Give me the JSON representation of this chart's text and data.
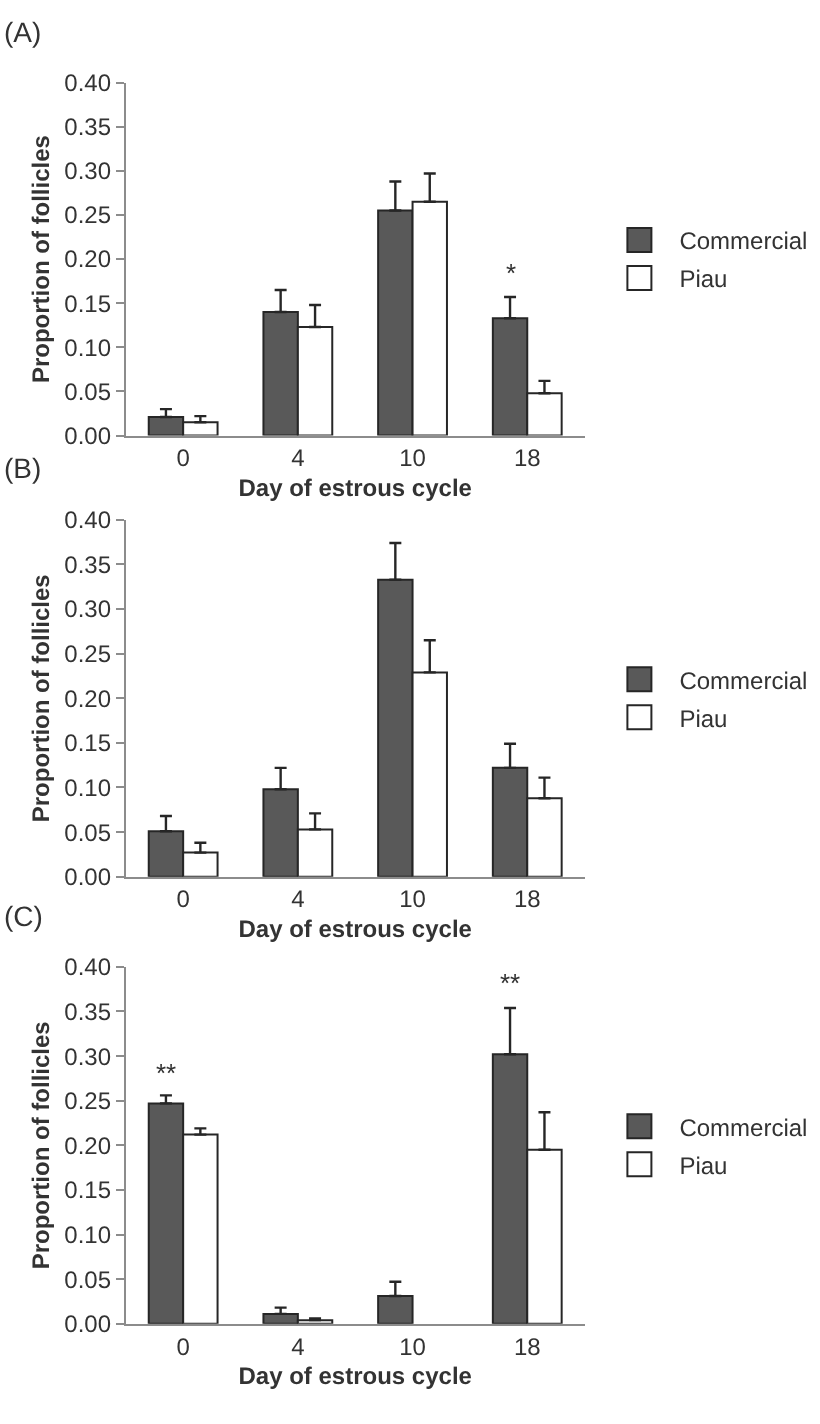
{
  "chart_data": [
    {
      "type": "bar",
      "title": "(A)",
      "xlabel": "Day of estrous cycle",
      "ylabel": "Proportion of follicles",
      "categories": [
        "0",
        "4",
        "10",
        "18"
      ],
      "ylim": [
        0,
        0.4
      ],
      "yticks": [
        {
          "value": 0,
          "label": "0.00"
        },
        {
          "value": 0.05,
          "label": "0.05"
        },
        {
          "value": 0.1,
          "label": "0.10"
        },
        {
          "value": 0.15,
          "label": "0.15"
        },
        {
          "value": 0.2,
          "label": "0.20"
        },
        {
          "value": 0.25,
          "label": "0.25"
        },
        {
          "value": 0.3,
          "label": "0.30"
        },
        {
          "value": 0.35,
          "label": "0.35"
        },
        {
          "value": 0.4,
          "label": "0.40"
        }
      ],
      "legend": "right",
      "series": [
        {
          "name": "Commercial",
          "color": "#595959",
          "values": [
            0.021,
            0.14,
            0.255,
            0.133
          ],
          "errors": [
            [
              0.021,
              0.03
            ],
            [
              0.14,
              0.165
            ],
            [
              0.255,
              0.288
            ],
            [
              0.133,
              0.157
            ]
          ]
        },
        {
          "name": "Piau",
          "color": "#ffffff",
          "values": [
            0.015,
            0.123,
            0.265,
            0.048
          ],
          "errors": [
            [
              0.015,
              0.022
            ],
            [
              0.123,
              0.148
            ],
            [
              0.265,
              0.297
            ],
            [
              0.048,
              0.062
            ]
          ]
        }
      ],
      "annotations": [
        {
          "text": "*",
          "x": "18",
          "y": 0.133
        }
      ]
    },
    {
      "type": "bar",
      "title": "(B)",
      "xlabel": "Day of estrous cycle",
      "ylabel": "Proportion of follicles",
      "categories": [
        "0",
        "4",
        "10",
        "18"
      ],
      "ylim": [
        0,
        0.4
      ],
      "yticks": [
        {
          "value": 0,
          "label": "0.00"
        },
        {
          "value": 0.05,
          "label": "0.05"
        },
        {
          "value": 0.1,
          "label": "0.10"
        },
        {
          "value": 0.15,
          "label": "0.15"
        },
        {
          "value": 0.2,
          "label": "0.20"
        },
        {
          "value": 0.25,
          "label": "0.25"
        },
        {
          "value": 0.3,
          "label": "0.30"
        },
        {
          "value": 0.35,
          "label": "0.35"
        },
        {
          "value": 0.4,
          "label": "0.40"
        }
      ],
      "legend": "right",
      "series": [
        {
          "name": "Commercial",
          "color": "#595959",
          "values": [
            0.051,
            0.098,
            0.333,
            0.122
          ],
          "errors": [
            [
              0.051,
              0.068
            ],
            [
              0.098,
              0.122
            ],
            [
              0.333,
              0.374
            ],
            [
              0.122,
              0.149
            ]
          ]
        },
        {
          "name": "Piau",
          "color": "#ffffff",
          "values": [
            0.027,
            0.053,
            0.229,
            0.088
          ],
          "errors": [
            [
              0.027,
              0.038
            ],
            [
              0.053,
              0.071
            ],
            [
              0.229,
              0.265
            ],
            [
              0.088,
              0.111
            ]
          ]
        }
      ]
    },
    {
      "type": "bar",
      "title": "(C)",
      "xlabel": "Day of estrous cycle",
      "ylabel": "Proportion of follicles",
      "categories": [
        "0",
        "4",
        "10",
        "18"
      ],
      "ylim": [
        0,
        0.4
      ],
      "yticks": [
        {
          "value": 0,
          "label": "0.00"
        },
        {
          "value": 0.05,
          "label": "0.05"
        },
        {
          "value": 0.1,
          "label": "0.10"
        },
        {
          "value": 0.15,
          "label": "0.15"
        },
        {
          "value": 0.2,
          "label": "0.20"
        },
        {
          "value": 0.25,
          "label": "0.25"
        },
        {
          "value": 0.3,
          "label": "0.30"
        },
        {
          "value": 0.35,
          "label": "0.35"
        },
        {
          "value": 0.4,
          "label": "0.40"
        }
      ],
      "legend": "right",
      "series": [
        {
          "name": "Commercial",
          "color": "#595959",
          "values": [
            0.247,
            0.011,
            0.031,
            0.302
          ],
          "errors": [
            [
              0.247,
              0.256
            ],
            [
              0.011,
              0.018
            ],
            [
              0.031,
              0.047
            ],
            [
              0.302,
              0.354
            ]
          ]
        },
        {
          "name": "Piau",
          "color": "#ffffff",
          "values": [
            0.212,
            0.004,
            null,
            0.195
          ],
          "errors": [
            [
              0.212,
              0.219
            ],
            [
              0.004,
              0.006
            ],
            null,
            [
              0.195,
              0.237
            ]
          ]
        }
      ],
      "annotations": [
        {
          "text": "**",
          "x": "0",
          "y": 0.247
        },
        {
          "text": "**",
          "x": "18",
          "y": 0.302
        }
      ]
    }
  ]
}
